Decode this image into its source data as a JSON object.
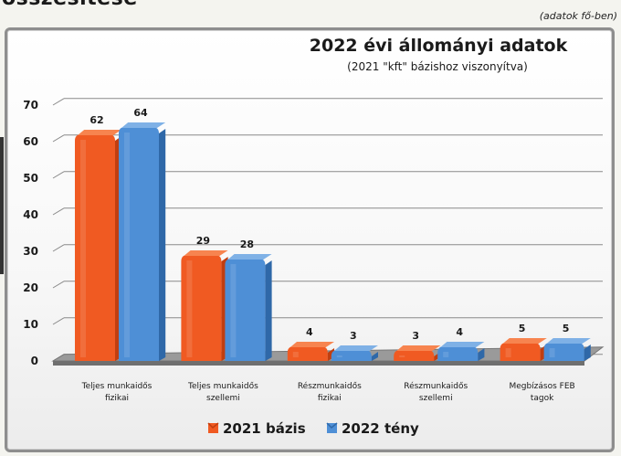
{
  "page": {
    "heading": "összesítése",
    "unit_note": "(adatok fő-ben)"
  },
  "chart_data": {
    "type": "bar",
    "title": "2022 évi állományi adatok",
    "subtitle": "(2021 \"kft\" bázishoz viszonyítva)",
    "categories": [
      [
        "Teljes munkaidős",
        "fizikai"
      ],
      [
        "Teljes munkaidős",
        "szellemi"
      ],
      [
        "Részmunkaidős",
        "fizikai"
      ],
      [
        "Részmunkaidős",
        "szellemi"
      ],
      [
        "Megbízásos FEB",
        "tagok"
      ]
    ],
    "series": [
      {
        "name": "2021 bázis",
        "values": [
          62,
          29,
          4,
          3,
          5
        ],
        "color": "#f05a22",
        "color_dark": "#c03e10",
        "color_top": "#f7844f"
      },
      {
        "name": "2022 tény",
        "values": [
          64,
          28,
          3,
          4,
          5
        ],
        "color": "#4e8fd6",
        "color_dark": "#2f68a8",
        "color_top": "#7fb1e6"
      }
    ],
    "ylim": [
      0,
      70
    ],
    "yticks": [
      0,
      10,
      20,
      30,
      40,
      50,
      60,
      70
    ],
    "grid": true,
    "legend": "bottom",
    "style": "3d"
  }
}
